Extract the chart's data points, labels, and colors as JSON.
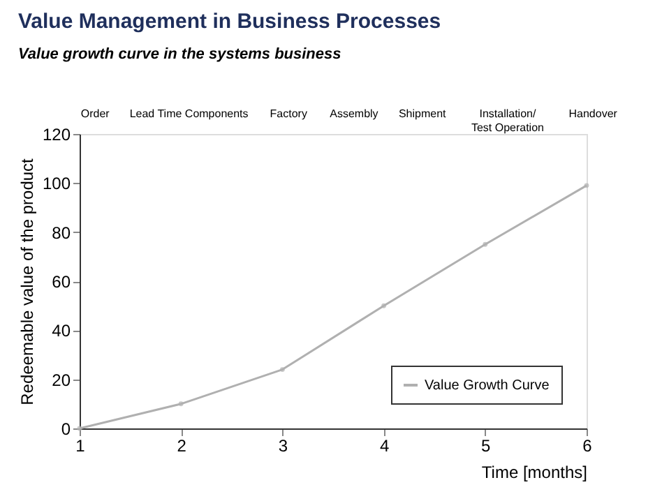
{
  "chart_data": {
    "type": "line",
    "title": "Value Management in Business Processes",
    "subtitle": "Value growth curve in the systems business",
    "xlabel": "Time [months]",
    "ylabel": "Redeemable value of the product",
    "x": [
      1,
      2,
      3,
      4,
      5,
      6
    ],
    "series": [
      {
        "name": "Value Growth Curve",
        "color": "#b0b0b0",
        "values": [
          0,
          10,
          24,
          50,
          75,
          99
        ]
      }
    ],
    "xlim": [
      1,
      6
    ],
    "xticks": [
      1,
      2,
      3,
      4,
      5,
      6
    ],
    "ylim": [
      0,
      120
    ],
    "yticks": [
      0,
      20,
      40,
      60,
      80,
      100,
      120
    ],
    "annotations": [
      "Order",
      "Lead Time Components",
      "Factory",
      "Assembly",
      "Shipment",
      "Installation/\nTest Operation",
      "Handover"
    ],
    "grid": false,
    "legend": "bottom right",
    "marker": "circle",
    "line_style": "solid"
  }
}
